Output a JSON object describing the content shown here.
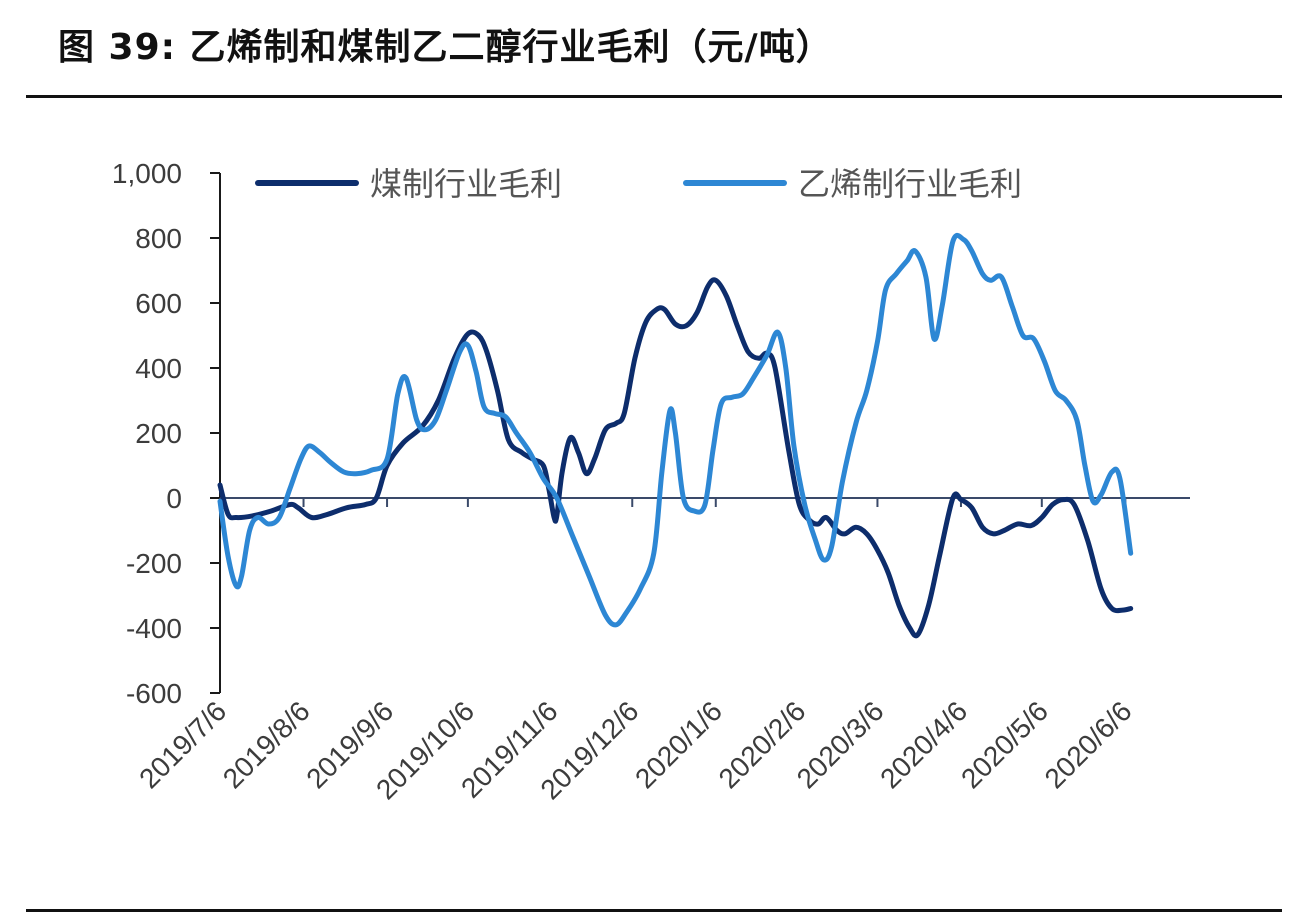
{
  "figure_title": "图 39: 乙烯制和煤制乙二醇行业毛利（元/吨）",
  "chart_data": {
    "type": "line",
    "title": "",
    "xlabel": "",
    "ylabel": "",
    "ylim": [
      -600,
      1000
    ],
    "y_ticks": [
      1000,
      800,
      600,
      400,
      200,
      0,
      -200,
      -400,
      -600
    ],
    "y_tick_labels": [
      "1,000",
      "800",
      "600",
      "400",
      "200",
      "0",
      "-200",
      "-400",
      "-600"
    ],
    "x_tick_labels": [
      "2019/7/6",
      "2019/8/6",
      "2019/9/6",
      "2019/10/6",
      "2019/11/6",
      "2019/12/6",
      "2020/1/6",
      "2020/2/6",
      "2020/3/6",
      "2020/4/6",
      "2020/5/6",
      "2020/6/6"
    ],
    "x_range": [
      "2019-07-06",
      "2020-06-30"
    ],
    "legend_position": "top",
    "grid": false,
    "series": [
      {
        "name": "煤制行业毛利",
        "color": "#0d2d6c",
        "points": [
          [
            "2019-07-06",
            40
          ],
          [
            "2019-07-09",
            -50
          ],
          [
            "2019-07-12",
            -60
          ],
          [
            "2019-07-18",
            -55
          ],
          [
            "2019-07-25",
            -40
          ],
          [
            "2019-08-01",
            -20
          ],
          [
            "2019-08-04",
            -30
          ],
          [
            "2019-08-09",
            -60
          ],
          [
            "2019-08-15",
            -50
          ],
          [
            "2019-08-22",
            -30
          ],
          [
            "2019-08-29",
            -20
          ],
          [
            "2019-09-02",
            0
          ],
          [
            "2019-09-06",
            100
          ],
          [
            "2019-09-12",
            170
          ],
          [
            "2019-09-19",
            220
          ],
          [
            "2019-09-25",
            300
          ],
          [
            "2019-10-01",
            430
          ],
          [
            "2019-10-06",
            505
          ],
          [
            "2019-10-10",
            500
          ],
          [
            "2019-10-13",
            450
          ],
          [
            "2019-10-17",
            330
          ],
          [
            "2019-10-21",
            180
          ],
          [
            "2019-10-26",
            140
          ],
          [
            "2019-10-30",
            120
          ],
          [
            "2019-11-03",
            100
          ],
          [
            "2019-11-05",
            30
          ],
          [
            "2019-11-07",
            -60
          ],
          [
            "2019-11-08",
            -55
          ],
          [
            "2019-11-10",
            80
          ],
          [
            "2019-11-13",
            185
          ],
          [
            "2019-11-16",
            140
          ],
          [
            "2019-11-19",
            75
          ],
          [
            "2019-11-22",
            120
          ],
          [
            "2019-11-26",
            210
          ],
          [
            "2019-11-30",
            230
          ],
          [
            "2019-12-03",
            260
          ],
          [
            "2019-12-07",
            430
          ],
          [
            "2019-12-11",
            540
          ],
          [
            "2019-12-15",
            580
          ],
          [
            "2019-12-18",
            580
          ],
          [
            "2019-12-22",
            535
          ],
          [
            "2019-12-26",
            530
          ],
          [
            "2019-12-30",
            570
          ],
          [
            "2020-01-03",
            650
          ],
          [
            "2020-01-06",
            670
          ],
          [
            "2020-01-10",
            620
          ],
          [
            "2020-01-14",
            530
          ],
          [
            "2020-01-18",
            450
          ],
          [
            "2020-01-22",
            430
          ],
          [
            "2020-01-25",
            445
          ],
          [
            "2020-01-28",
            400
          ],
          [
            "2020-02-02",
            150
          ],
          [
            "2020-02-06",
            -20
          ],
          [
            "2020-02-10",
            -70
          ],
          [
            "2020-02-13",
            -80
          ],
          [
            "2020-02-16",
            -60
          ],
          [
            "2020-02-20",
            -100
          ],
          [
            "2020-02-23",
            -110
          ],
          [
            "2020-02-27",
            -90
          ],
          [
            "2020-03-02",
            -110
          ],
          [
            "2020-03-06",
            -160
          ],
          [
            "2020-03-10",
            -230
          ],
          [
            "2020-03-14",
            -330
          ],
          [
            "2020-03-18",
            -400
          ],
          [
            "2020-03-21",
            -420
          ],
          [
            "2020-03-25",
            -330
          ],
          [
            "2020-03-29",
            -180
          ],
          [
            "2020-04-03",
            0
          ],
          [
            "2020-04-06",
            -5
          ],
          [
            "2020-04-10",
            -30
          ],
          [
            "2020-04-14",
            -90
          ],
          [
            "2020-04-18",
            -110
          ],
          [
            "2020-04-22",
            -100
          ],
          [
            "2020-04-27",
            -80
          ],
          [
            "2020-05-02",
            -85
          ],
          [
            "2020-05-06",
            -60
          ],
          [
            "2020-05-10",
            -20
          ],
          [
            "2020-05-14",
            -5
          ],
          [
            "2020-05-18",
            -20
          ],
          [
            "2020-05-23",
            -130
          ],
          [
            "2020-05-28",
            -280
          ],
          [
            "2020-06-01",
            -340
          ],
          [
            "2020-06-05",
            -345
          ],
          [
            "2020-06-08",
            -340
          ]
        ]
      },
      {
        "name": "乙烯制行业毛利",
        "color": "#2d87d4",
        "points": [
          [
            "2019-07-06",
            -10
          ],
          [
            "2019-07-09",
            -180
          ],
          [
            "2019-07-12",
            -270
          ],
          [
            "2019-07-14",
            -240
          ],
          [
            "2019-07-17",
            -100
          ],
          [
            "2019-07-20",
            -60
          ],
          [
            "2019-07-24",
            -80
          ],
          [
            "2019-07-28",
            -60
          ],
          [
            "2019-08-01",
            30
          ],
          [
            "2019-08-05",
            120
          ],
          [
            "2019-08-08",
            160
          ],
          [
            "2019-08-12",
            140
          ],
          [
            "2019-08-16",
            110
          ],
          [
            "2019-08-21",
            80
          ],
          [
            "2019-08-26",
            75
          ],
          [
            "2019-08-31",
            85
          ],
          [
            "2019-09-06",
            120
          ],
          [
            "2019-09-10",
            320
          ],
          [
            "2019-09-13",
            370
          ],
          [
            "2019-09-17",
            240
          ],
          [
            "2019-09-20",
            210
          ],
          [
            "2019-09-24",
            240
          ],
          [
            "2019-09-28",
            330
          ],
          [
            "2019-10-03",
            450
          ],
          [
            "2019-10-06",
            470
          ],
          [
            "2019-10-09",
            390
          ],
          [
            "2019-10-12",
            280
          ],
          [
            "2019-10-16",
            260
          ],
          [
            "2019-10-20",
            250
          ],
          [
            "2019-10-24",
            200
          ],
          [
            "2019-10-29",
            140
          ],
          [
            "2019-11-03",
            60
          ],
          [
            "2019-11-08",
            0
          ],
          [
            "2019-11-14",
            -120
          ],
          [
            "2019-11-20",
            -240
          ],
          [
            "2019-11-26",
            -360
          ],
          [
            "2019-11-30",
            -390
          ],
          [
            "2019-12-04",
            -350
          ],
          [
            "2019-12-09",
            -280
          ],
          [
            "2019-12-14",
            -170
          ],
          [
            "2019-12-17",
            80
          ],
          [
            "2019-12-20",
            270
          ],
          [
            "2019-12-22",
            200
          ],
          [
            "2019-12-25",
            0
          ],
          [
            "2019-12-29",
            -40
          ],
          [
            "2020-01-02",
            -20
          ],
          [
            "2020-01-05",
            150
          ],
          [
            "2020-01-08",
            290
          ],
          [
            "2020-01-12",
            310
          ],
          [
            "2020-01-16",
            320
          ],
          [
            "2020-01-20",
            370
          ],
          [
            "2020-01-25",
            440
          ],
          [
            "2020-01-29",
            510
          ],
          [
            "2020-02-01",
            400
          ],
          [
            "2020-02-04",
            160
          ],
          [
            "2020-02-08",
            -20
          ],
          [
            "2020-02-12",
            -130
          ],
          [
            "2020-02-15",
            -190
          ],
          [
            "2020-02-18",
            -150
          ],
          [
            "2020-02-22",
            50
          ],
          [
            "2020-02-27",
            230
          ],
          [
            "2020-03-02",
            330
          ],
          [
            "2020-03-06",
            480
          ],
          [
            "2020-03-09",
            640
          ],
          [
            "2020-03-13",
            690
          ],
          [
            "2020-03-17",
            730
          ],
          [
            "2020-03-20",
            760
          ],
          [
            "2020-03-24",
            680
          ],
          [
            "2020-03-27",
            490
          ],
          [
            "2020-03-30",
            590
          ],
          [
            "2020-04-03",
            790
          ],
          [
            "2020-04-07",
            795
          ],
          [
            "2020-04-10",
            760
          ],
          [
            "2020-04-14",
            690
          ],
          [
            "2020-04-17",
            670
          ],
          [
            "2020-04-21",
            680
          ],
          [
            "2020-04-25",
            590
          ],
          [
            "2020-04-29",
            500
          ],
          [
            "2020-05-03",
            490
          ],
          [
            "2020-05-07",
            420
          ],
          [
            "2020-05-11",
            330
          ],
          [
            "2020-05-15",
            300
          ],
          [
            "2020-05-19",
            240
          ],
          [
            "2020-05-22",
            100
          ],
          [
            "2020-05-25",
            -10
          ],
          [
            "2020-05-28",
            10
          ],
          [
            "2020-06-01",
            80
          ],
          [
            "2020-06-04",
            60
          ],
          [
            "2020-06-08",
            -170
          ]
        ]
      }
    ]
  }
}
